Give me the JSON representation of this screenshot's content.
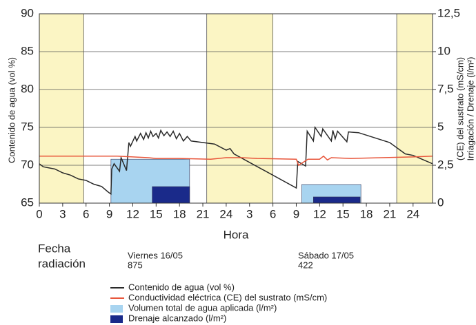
{
  "chart_data": {
    "type": "line",
    "xlabel": "Hora",
    "ylabel": "Contenido de agua (vol %)",
    "y2label": [
      "(CE) del sustrato (mS/cm)",
      "Irriagación / Drenaje (l/m²)"
    ],
    "xlim": [
      0,
      50.5
    ],
    "xticks": [
      0,
      3,
      6,
      9,
      12,
      15,
      18,
      21,
      24,
      {
        "value": 27,
        "label": "3"
      },
      {
        "value": 30,
        "label": "6"
      },
      {
        "value": 33,
        "label": "9"
      },
      {
        "value": 36,
        "label": "12"
      },
      {
        "value": 39,
        "label": "15"
      },
      {
        "value": 42,
        "label": "18"
      },
      {
        "value": 45,
        "label": "21"
      },
      {
        "value": 48,
        "label": "24"
      }
    ],
    "ylim": [
      65,
      90
    ],
    "yticks": [
      65,
      70,
      75,
      80,
      85,
      90
    ],
    "y2lim": [
      0,
      12.5
    ],
    "y2ticks": [
      0,
      {
        "value": 2.5,
        "label": "2,5"
      },
      5,
      {
        "value": 7.5,
        "label": "7,5"
      },
      10,
      {
        "value": 12.5,
        "label": "12,5"
      }
    ],
    "grid": true,
    "night_bands": [
      [
        0,
        5.7
      ],
      [
        21.5,
        30
      ],
      [
        45.9,
        50.5
      ]
    ],
    "night_color": "#fbf5c4",
    "series": [
      {
        "name": "Contenido de agua (vol %)",
        "color": "#2a2a2a",
        "x": [
          0,
          0.5,
          2,
          3,
          4,
          5,
          6,
          7,
          8,
          8.8,
          9.2,
          9.3,
          9.6,
          10.3,
          10.5,
          11.2,
          11.5,
          11.7,
          12.3,
          12.5,
          13,
          13.4,
          13.7,
          14,
          14.3,
          14.6,
          15,
          15.3,
          15.6,
          16,
          16.4,
          16.8,
          17.2,
          17.6,
          18,
          18.5,
          19,
          19.5,
          21,
          22.5,
          24,
          24.5,
          25,
          33,
          33.2,
          34.2,
          34.4,
          35.2,
          35.4,
          36.2,
          36.4,
          37.5,
          37.7,
          38,
          38.3,
          39.5,
          39.7,
          41,
          45,
          47,
          48,
          50.5
        ],
        "values": [
          70.2,
          69.8,
          69.5,
          69,
          68.7,
          68.2,
          68,
          67.5,
          67.2,
          66.5,
          66.2,
          69.5,
          70.2,
          69.2,
          71,
          69.3,
          73,
          72.5,
          73.8,
          73.2,
          74.2,
          73.4,
          74.3,
          73.6,
          74.5,
          73.8,
          74.2,
          73.6,
          74.6,
          73.9,
          74.4,
          73.8,
          74.5,
          73.5,
          74.2,
          73.2,
          73.8,
          73.2,
          73,
          72.8,
          72,
          72.2,
          71.5,
          67,
          70.5,
          69.9,
          74.5,
          73.2,
          75,
          73.8,
          74.8,
          73.2,
          74.6,
          73.5,
          74.5,
          73.1,
          74.4,
          74.3,
          73,
          71.5,
          71.3,
          70.2
        ]
      },
      {
        "name": "Conductividad eléctrica (CE) del sustrato (mS/cm)",
        "color": "#e8553a",
        "axis": "y2",
        "x": [
          0,
          10,
          14,
          15,
          18,
          22,
          24,
          26,
          28,
          33,
          33.3,
          34.5,
          36,
          36.5,
          37,
          37.5,
          40,
          44,
          48,
          50.5
        ],
        "values": [
          3.1,
          3.1,
          3.0,
          2.95,
          2.95,
          2.9,
          3.0,
          3.0,
          2.95,
          2.9,
          2.5,
          2.9,
          2.9,
          3.1,
          2.85,
          3.0,
          2.95,
          3.0,
          3.05,
          3.1
        ]
      },
      {
        "name": "Volumen total de agua aplicada (l/m²)",
        "type": "bar",
        "color": "#a8d4f0",
        "axis": "y2",
        "x_start": [
          9.2,
          33.7
        ],
        "x_end": [
          19.3,
          41.3
        ],
        "values": [
          2.9,
          1.23
        ]
      },
      {
        "name": "Drenaje alcanzado (l/m²)",
        "type": "bar",
        "color": "#1a2a8a",
        "axis": "y2",
        "x_start": [
          14.5,
          35.2
        ],
        "x_end": [
          19.3,
          41.2
        ],
        "values": [
          1.09,
          0.41
        ]
      }
    ],
    "radiation_heading": [
      "Fecha",
      "radiación"
    ],
    "days": [
      {
        "date": "Viernes 16/05",
        "radiation": 875
      },
      {
        "date": "Sábado 17/05",
        "radiation": 422
      }
    ]
  }
}
